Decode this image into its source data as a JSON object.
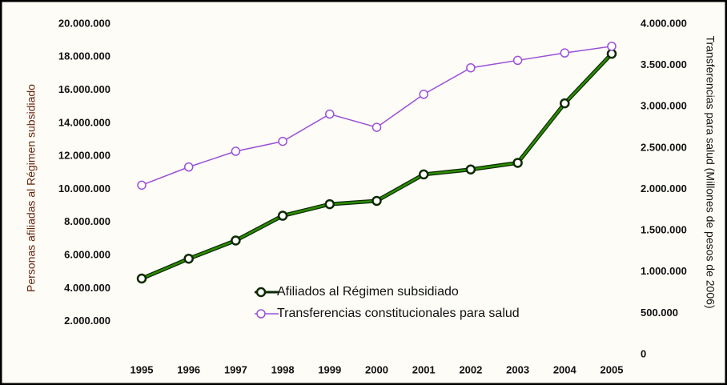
{
  "chart_data": {
    "type": "line",
    "y_label": "Personas afiliadas al Régimen subsidiado",
    "y2_label": "Transferencias para salud (Millones de pesos de 2006)",
    "categories": [
      "1995",
      "1996",
      "1997",
      "1998",
      "1999",
      "2000",
      "2001",
      "2002",
      "2003",
      "2004",
      "2005"
    ],
    "series": [
      {
        "name": "Afiliados al Régimen subsidiado",
        "color": "#2c8c00",
        "values": [
          4600000,
          5800000,
          6900000,
          8400000,
          9100000,
          9300000,
          10900000,
          11200000,
          11600000,
          15200000,
          18200000
        ]
      },
      {
        "name": "Transferencias constitucionales para salud",
        "color": "#9a50d8",
        "axis": "y2",
        "values": [
          2050000,
          2270000,
          2460000,
          2580000,
          2910000,
          2750000,
          3150000,
          3470000,
          3560000,
          3650000,
          3730000
        ]
      }
    ],
    "ylim": [
      0,
      20000000
    ],
    "yticks": [
      {
        "value": 2000000,
        "label": "2.000.000"
      },
      {
        "value": 4000000,
        "label": "4.000.000"
      },
      {
        "value": 6000000,
        "label": "6.000.000"
      },
      {
        "value": 8000000,
        "label": "8.000.000"
      },
      {
        "value": 10000000,
        "label": "10.000.000"
      },
      {
        "value": 12000000,
        "label": "12.000.000"
      },
      {
        "value": 14000000,
        "label": "14.000.000"
      },
      {
        "value": 16000000,
        "label": "16.000.000"
      },
      {
        "value": 18000000,
        "label": "18.000.000"
      },
      {
        "value": 20000000,
        "label": "20.000.000"
      }
    ],
    "y2lim": [
      0,
      4000000
    ],
    "y2ticks": [
      0,
      {
        "value": 500000,
        "label": "500.000"
      },
      {
        "value": 1000000,
        "label": "1.000.000"
      },
      {
        "value": 1500000,
        "label": "1.500.000"
      },
      {
        "value": 2000000,
        "label": "2.000.000"
      },
      {
        "value": 2500000,
        "label": "2.500.000"
      },
      {
        "value": 3000000,
        "label": "3.000.000"
      },
      {
        "value": 3500000,
        "label": "3.500.000"
      },
      {
        "value": 4000000,
        "label": "4.000.000"
      }
    ],
    "grid": false,
    "legend": "bottom"
  }
}
